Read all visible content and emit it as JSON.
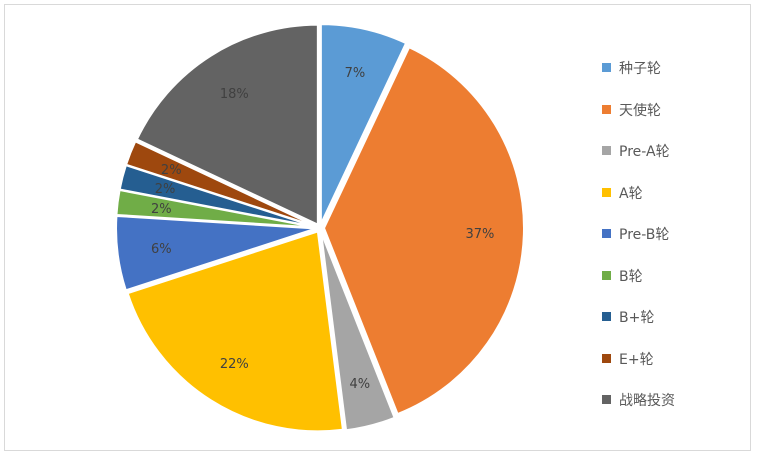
{
  "chart_data": {
    "type": "pie",
    "title": "",
    "start_angle_deg": 0,
    "direction": "clockwise",
    "slices": [
      {
        "label": "种子轮",
        "value": 7,
        "value_label": "7%",
        "color": "#5b9bd5",
        "label_color": "#404040"
      },
      {
        "label": "天使轮",
        "value": 37,
        "value_label": "37%",
        "color": "#ed7d31",
        "label_color": "#404040"
      },
      {
        "label": "Pre-A轮",
        "value": 4,
        "value_label": "4%",
        "color": "#a5a5a5",
        "label_color": "#404040"
      },
      {
        "label": "A轮",
        "value": 22,
        "value_label": "22%",
        "color": "#ffc000",
        "label_color": "#404040"
      },
      {
        "label": "Pre-B轮",
        "value": 6,
        "value_label": "6%",
        "color": "#4472c4",
        "label_color": "#404040"
      },
      {
        "label": "B轮",
        "value": 2,
        "value_label": "2%",
        "color": "#70ad47",
        "label_color": "#404040"
      },
      {
        "label": "B+轮",
        "value": 2,
        "value_label": "2%",
        "color": "#255e91",
        "label_color": "#404040"
      },
      {
        "label": "E+轮",
        "value": 2,
        "value_label": "2%",
        "color": "#9e480e",
        "label_color": "#404040"
      },
      {
        "label": "战略投资",
        "value": 18,
        "value_label": "18%",
        "color": "#636363",
        "label_color": "#404040"
      }
    ],
    "legend_position": "right"
  }
}
